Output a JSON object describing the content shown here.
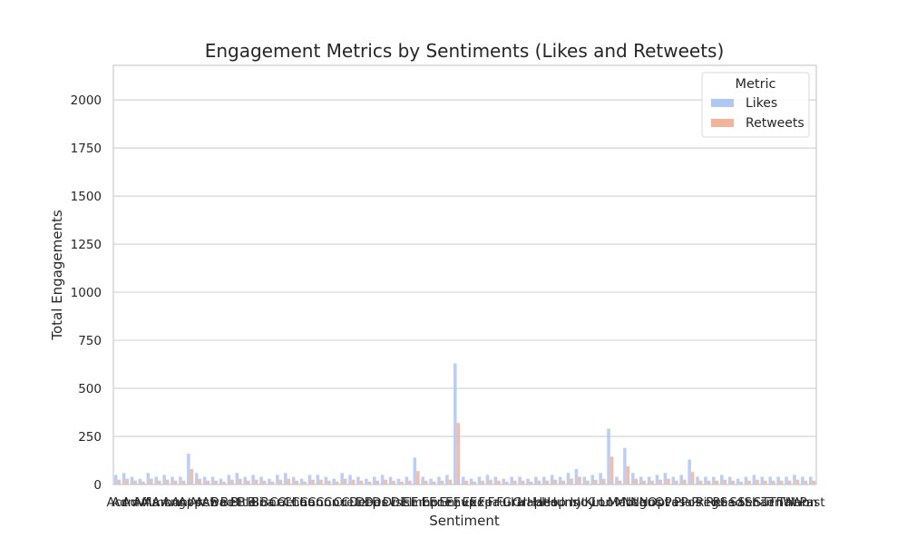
{
  "chart_data": {
    "type": "bar",
    "title": "Engagement Metrics by Sentiments (Likes and Retweets)",
    "xlabel": "Sentiment",
    "ylabel": "Total Engagements",
    "ylim": [
      0,
      2180
    ],
    "yticks": [
      0,
      250,
      500,
      750,
      1000,
      1250,
      1500,
      1750,
      2000
    ],
    "grid": true,
    "legend": {
      "title": "Metric",
      "position": "top-right"
    },
    "colors": {
      "Likes": "#aec7f3",
      "Retweets": "#f1b39a",
      "grid": "#d4d4d4",
      "axes": "#cccccc"
    },
    "categories": [
      "Acc",
      "Adm",
      "Adv",
      "Aff",
      "Ala",
      "Amb",
      "Amu",
      "Ang",
      "Ant",
      "App",
      "Arr",
      "Ash",
      "Awe",
      "Bad",
      "Bet",
      "Bit",
      "Ble",
      "Bli",
      "Boa",
      "Bor",
      "Cal",
      "Cel",
      "Cha",
      "Cha",
      "Con",
      "Con",
      "Con",
      "Cou",
      "Cre",
      "Cur",
      "Def",
      "Dep",
      "Des",
      "Dev",
      "Dis",
      "Dis",
      "Eli",
      "Emb",
      "Emp",
      "Enc",
      "Ene",
      "Enj",
      "Env",
      "Eup",
      "Exc",
      "Exp",
      "Fea",
      "Fru",
      "Ful",
      "Gra",
      "Gri",
      "Hap",
      "Hat",
      "Hea",
      "Hop",
      "Hum",
      "Ins",
      "Int",
      "Joy",
      "Kin",
      "Lon",
      "Lov",
      "Mel",
      "Mot",
      "Neg",
      "Neu",
      "Nos",
      "Opt",
      "Ove",
      "Pas",
      "Pla",
      "Pos",
      "Pri",
      "Reg",
      "Rel",
      "Res",
      "Sad",
      "Sat",
      "Ser",
      "Sha",
      "Sur",
      "Ten",
      "Tha",
      "Thr",
      "Wan",
      "Won",
      "Past"
    ],
    "series": [
      {
        "name": "Likes",
        "values": [
          50,
          60,
          40,
          30,
          60,
          40,
          50,
          40,
          40,
          160,
          60,
          40,
          40,
          30,
          50,
          60,
          40,
          50,
          40,
          30,
          50,
          60,
          40,
          30,
          50,
          50,
          40,
          30,
          60,
          50,
          40,
          30,
          40,
          50,
          40,
          30,
          40,
          140,
          40,
          30,
          40,
          50,
          630,
          40,
          30,
          40,
          50,
          40,
          30,
          40,
          40,
          30,
          40,
          40,
          50,
          40,
          60,
          80,
          40,
          50,
          60,
          290,
          40,
          190,
          60,
          40,
          40,
          50,
          60,
          40,
          50,
          130,
          40,
          40,
          40,
          50,
          40,
          30,
          40,
          50,
          40,
          40,
          40,
          40,
          50,
          40,
          40
        ]
      },
      {
        "name": "Retweets",
        "values": [
          25,
          30,
          20,
          15,
          30,
          20,
          25,
          20,
          20,
          80,
          30,
          20,
          20,
          15,
          25,
          30,
          20,
          25,
          20,
          15,
          25,
          30,
          20,
          15,
          25,
          25,
          20,
          15,
          30,
          25,
          20,
          15,
          20,
          25,
          20,
          15,
          20,
          70,
          20,
          15,
          20,
          25,
          320,
          20,
          15,
          20,
          25,
          20,
          15,
          20,
          20,
          15,
          20,
          20,
          25,
          20,
          30,
          40,
          20,
          25,
          30,
          145,
          20,
          95,
          30,
          20,
          20,
          25,
          30,
          20,
          25,
          65,
          20,
          20,
          20,
          25,
          20,
          15,
          20,
          25,
          20,
          20,
          20,
          20,
          25,
          20,
          20
        ]
      }
    ]
  }
}
